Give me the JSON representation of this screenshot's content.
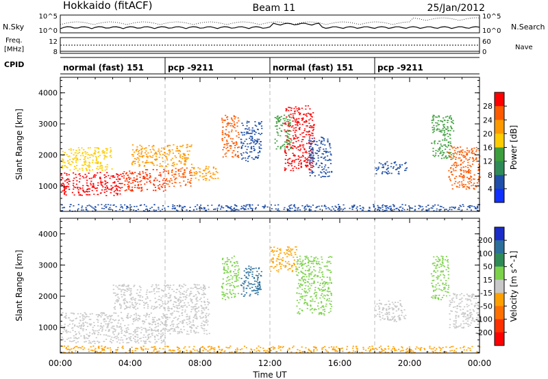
{
  "header": {
    "station": "Hokkaido (fitACF)",
    "beam": "Beam 11",
    "date": "25/Jan/2012"
  },
  "noise_panel": {
    "left_label": "N.Sky",
    "right_label": "N.Search",
    "left_ticks": [
      "10^5",
      "10^0"
    ],
    "right_ticks": [
      "10^5",
      "10^0"
    ]
  },
  "freq_panel": {
    "left_label_1": "Freq.",
    "left_label_2": "[MHz]",
    "left_ticks": [
      "12",
      "8"
    ],
    "right_label": "Nave",
    "right_ticks": [
      "60",
      "0"
    ]
  },
  "cpid": {
    "label": "CPID",
    "segments": [
      {
        "start_hour": 0,
        "name": "normal (fast) 151"
      },
      {
        "start_hour": 6,
        "name": "pcp -9211"
      },
      {
        "start_hour": 12,
        "name": "normal (fast) 151"
      },
      {
        "start_hour": 18,
        "name": "pcp -9211"
      }
    ]
  },
  "chart_data": [
    {
      "type": "heatmap",
      "title": "",
      "xlabel": "",
      "ylabel": "Slant Range [km]",
      "xlim": [
        0,
        24
      ],
      "ylim": [
        180,
        4500
      ],
      "y_ticks": [
        1000,
        2000,
        3000,
        4000
      ],
      "y_tick_labels": [
        "1000",
        "2000",
        "3000",
        "4000"
      ],
      "colorbar": {
        "label": "Power [dB]",
        "tick_labels": [
          "28",
          "24",
          "20",
          "16",
          "12",
          "8",
          "4"
        ],
        "colors": [
          "#ff0000",
          "#ff5a00",
          "#ff9900",
          "#ffcc00",
          "#3c9f3c",
          "#2e8b57",
          "#1f4fa8",
          "#1030ff"
        ]
      },
      "regions": [
        {
          "t0": 0.0,
          "t1": 3.5,
          "r0": 700,
          "r1": 1450,
          "color": "#ff0000"
        },
        {
          "t0": 3.5,
          "t1": 6.0,
          "r0": 850,
          "r1": 1550,
          "color": "#ff3000"
        },
        {
          "t0": 6.0,
          "t1": 7.5,
          "r0": 1000,
          "r1": 1600,
          "color": "#ff5a00"
        },
        {
          "t0": 7.5,
          "t1": 9.0,
          "r0": 1200,
          "r1": 1650,
          "color": "#ff9900"
        },
        {
          "t0": 4.0,
          "t1": 7.5,
          "r0": 1650,
          "r1": 2350,
          "color": "#ff9900"
        },
        {
          "t0": 0.0,
          "t1": 3.0,
          "r0": 1500,
          "r1": 2250,
          "color": "#ffcc00"
        },
        {
          "t0": 9.2,
          "t1": 10.2,
          "r0": 1900,
          "r1": 3300,
          "color": "#ff5a00"
        },
        {
          "t0": 10.3,
          "t1": 11.5,
          "r0": 1800,
          "r1": 3100,
          "color": "#1f4fa8"
        },
        {
          "t0": 12.8,
          "t1": 14.5,
          "r0": 1500,
          "r1": 3600,
          "color": "#ff0000"
        },
        {
          "t0": 14.2,
          "t1": 15.5,
          "r0": 1300,
          "r1": 2600,
          "color": "#1f4fa8"
        },
        {
          "t0": 12.2,
          "t1": 13.2,
          "r0": 2200,
          "r1": 3300,
          "color": "#3c9f3c"
        },
        {
          "t0": 18.0,
          "t1": 19.8,
          "r0": 1400,
          "r1": 1800,
          "color": "#1f4fa8"
        },
        {
          "t0": 21.2,
          "t1": 22.5,
          "r0": 1900,
          "r1": 3300,
          "color": "#3c9f3c"
        },
        {
          "t0": 22.2,
          "t1": 24.0,
          "r0": 900,
          "r1": 2300,
          "color": "#ff5a00"
        },
        {
          "t0": 0.0,
          "t1": 24.0,
          "r0": 200,
          "r1": 420,
          "color": "#1f4fa8"
        }
      ]
    },
    {
      "type": "heatmap",
      "title": "",
      "xlabel": "Time UT",
      "ylabel": "Slant Range [km]",
      "xlim": [
        0,
        24
      ],
      "ylim": [
        180,
        4500
      ],
      "x_tick_labels": [
        "00:00",
        "04:00",
        "08:00",
        "12:00",
        "16:00",
        "20:00",
        "00:00"
      ],
      "y_ticks": [
        1000,
        2000,
        3000,
        4000
      ],
      "y_tick_labels": [
        "1000",
        "2000",
        "3000",
        "4000"
      ],
      "colorbar": {
        "label": "Velocity [m s^-1]",
        "tick_labels": [
          "200",
          "100",
          "50",
          "15",
          "-15",
          "-50",
          "-100",
          "-200"
        ],
        "colors": [
          "#1a2cc8",
          "#2c6f9a",
          "#2e8b57",
          "#7cd24a",
          "#c8c8c8",
          "#ffa000",
          "#ff7000",
          "#ff3000",
          "#ff0000"
        ]
      },
      "regions": [
        {
          "t0": 0.0,
          "t1": 6.0,
          "r0": 500,
          "r1": 1500,
          "color": "#c8c8c8"
        },
        {
          "t0": 6.0,
          "t1": 8.5,
          "r0": 800,
          "r1": 1700,
          "color": "#c8c8c8"
        },
        {
          "t0": 3.0,
          "t1": 8.5,
          "r0": 1600,
          "r1": 2400,
          "color": "#c8c8c8"
        },
        {
          "t0": 9.2,
          "t1": 10.2,
          "r0": 1900,
          "r1": 3300,
          "color": "#7cd24a"
        },
        {
          "t0": 10.3,
          "t1": 11.5,
          "r0": 2000,
          "r1": 3000,
          "color": "#2c6f9a"
        },
        {
          "t0": 12.0,
          "t1": 13.5,
          "r0": 2800,
          "r1": 3600,
          "color": "#ffa000"
        },
        {
          "t0": 13.5,
          "t1": 15.5,
          "r0": 1400,
          "r1": 3300,
          "color": "#7cd24a"
        },
        {
          "t0": 18.0,
          "t1": 19.8,
          "r0": 1200,
          "r1": 1900,
          "color": "#c8c8c8"
        },
        {
          "t0": 21.2,
          "t1": 22.2,
          "r0": 1900,
          "r1": 3300,
          "color": "#7cd24a"
        },
        {
          "t0": 22.2,
          "t1": 24.0,
          "r0": 1000,
          "r1": 2100,
          "color": "#c8c8c8"
        },
        {
          "t0": 0.0,
          "t1": 24.0,
          "r0": 200,
          "r1": 420,
          "color": "#ffa000"
        }
      ]
    }
  ]
}
